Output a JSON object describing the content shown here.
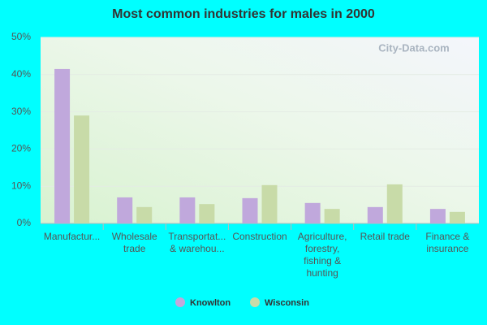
{
  "chart_data": {
    "type": "bar",
    "title": "Most common industries for males in 2000",
    "watermark": "City-Data.com",
    "categories": [
      "Manufactur...",
      "Wholesale\ntrade",
      "Transportat...\n& warehou...",
      "Construction",
      "Agriculture,\nforestry,\nfishing &\nhunting",
      "Retail trade",
      "Finance &\ninsurance"
    ],
    "series": [
      {
        "name": "Knowlton",
        "color": "#c0a8dc",
        "values": [
          41.5,
          7.0,
          7.0,
          6.8,
          5.5,
          4.4,
          3.9
        ]
      },
      {
        "name": "Wisconsin",
        "color": "#c8dba8",
        "values": [
          29.0,
          4.4,
          5.2,
          10.3,
          3.9,
          10.5,
          3.1
        ]
      }
    ],
    "ylim": [
      0,
      50
    ],
    "yticks": [
      {
        "value": 0,
        "label": "0%"
      },
      {
        "value": 10,
        "label": "10%"
      },
      {
        "value": 20,
        "label": "20%"
      },
      {
        "value": 30,
        "label": "30%"
      },
      {
        "value": 40,
        "label": "40%"
      },
      {
        "value": 50,
        "label": "50%"
      }
    ],
    "grid": true,
    "legend": "bottom"
  }
}
